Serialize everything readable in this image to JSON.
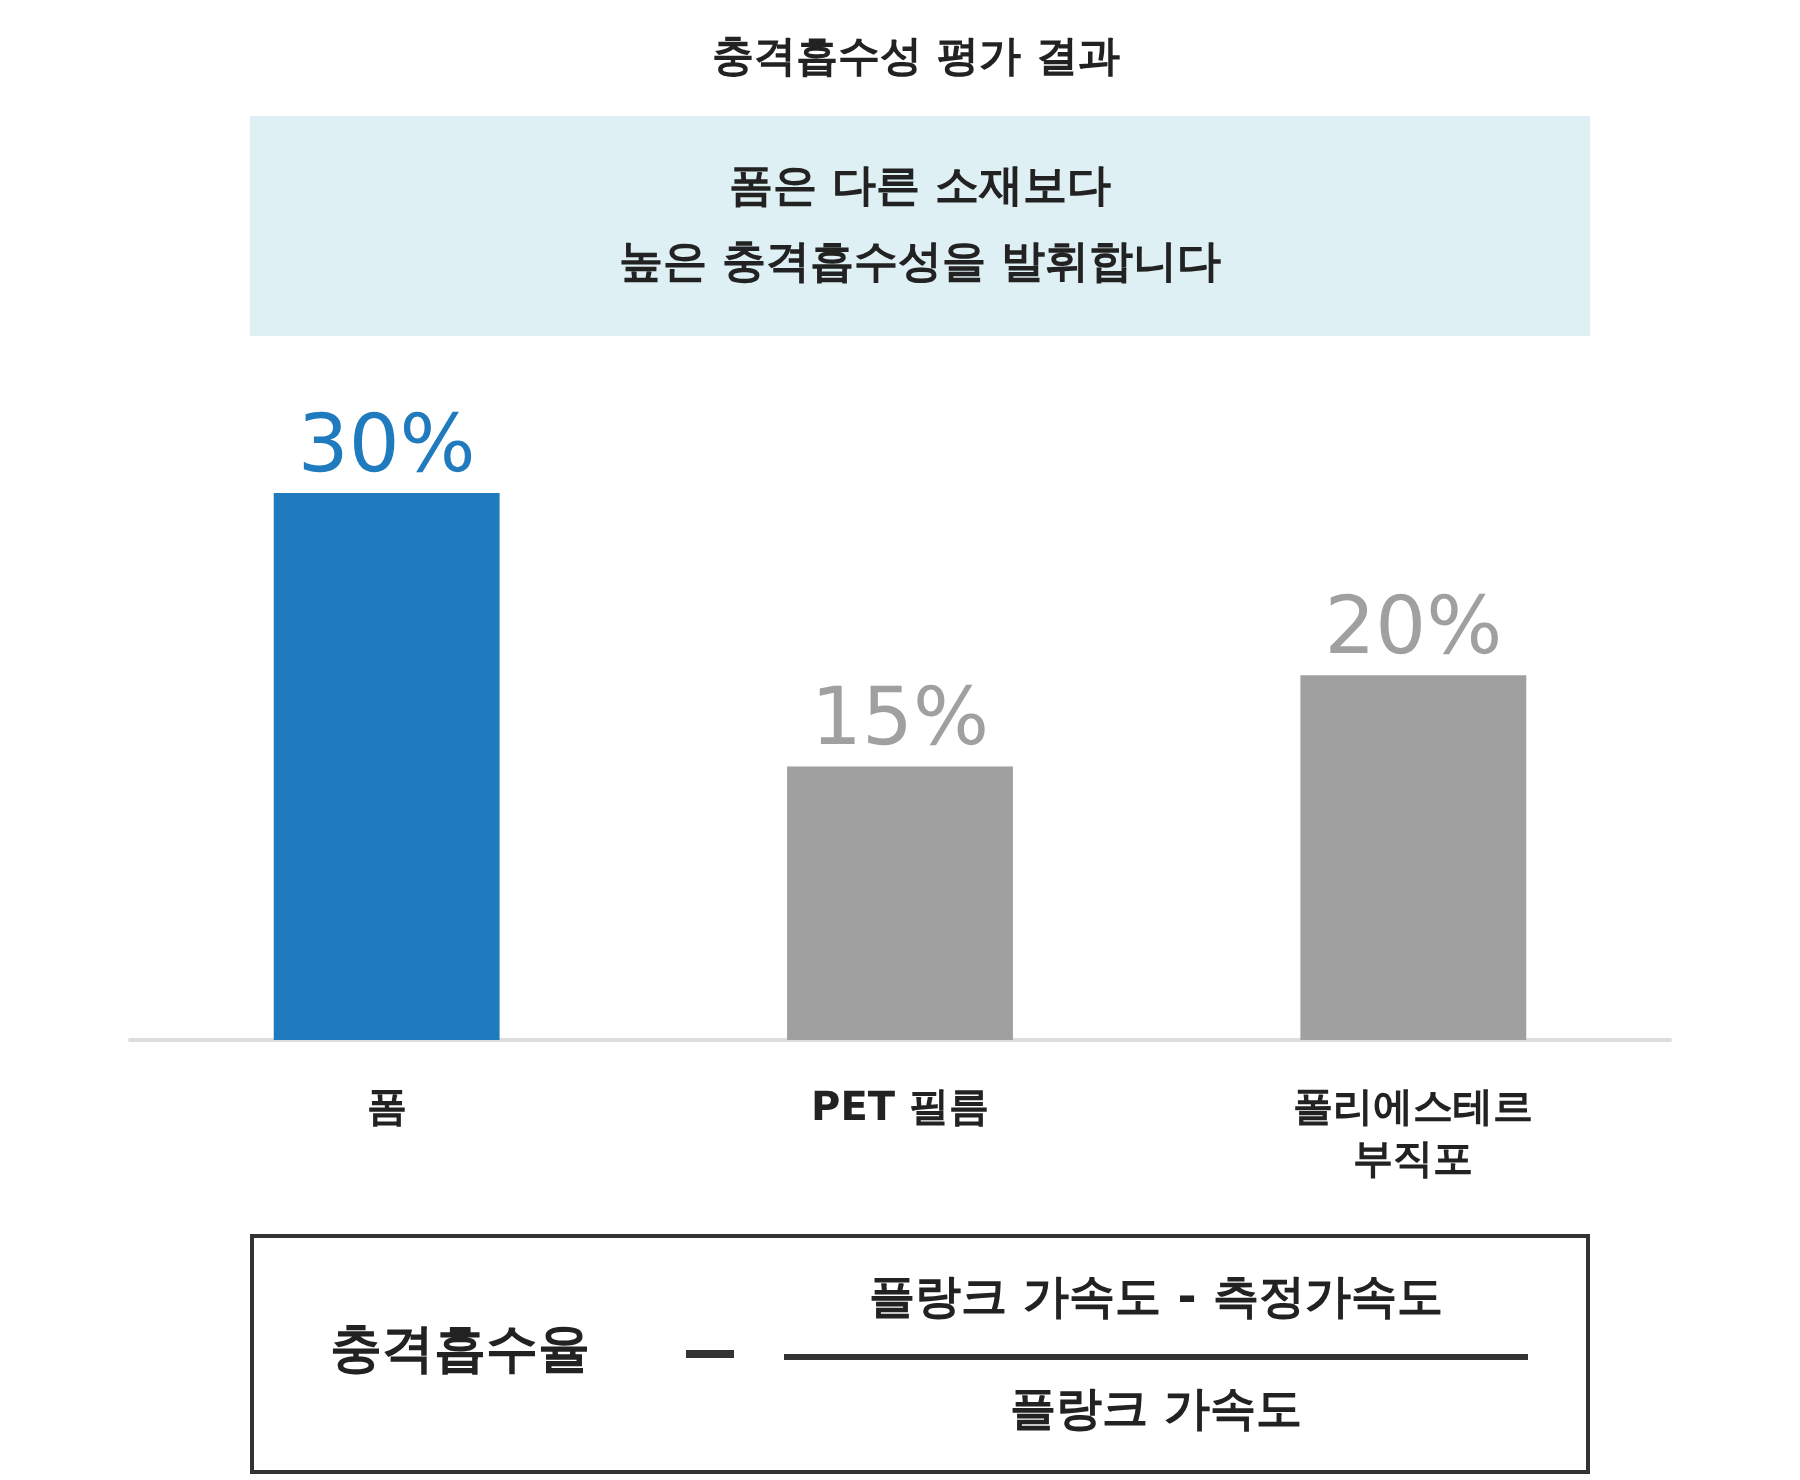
{
  "chart_data": {
    "type": "bar",
    "title": "충격흡수성 평가 결과",
    "subtitle": "폼은 다른 소재보다\n높은 충격흡수성을 발휘합니다",
    "categories": [
      "폼",
      "PET 필름",
      "폴리에스테르\n부직포"
    ],
    "values": [
      30,
      15,
      20
    ],
    "colors": [
      "#1f7bbd",
      "#a0a0a0",
      "#a0a0a0"
    ],
    "value_labels": [
      "30%",
      "15%",
      "20%"
    ],
    "annotations": [
      "충격흡수율",
      "플랑크 가속도 - 측정가속도",
      "플랑크 가속도"
    ]
  }
}
